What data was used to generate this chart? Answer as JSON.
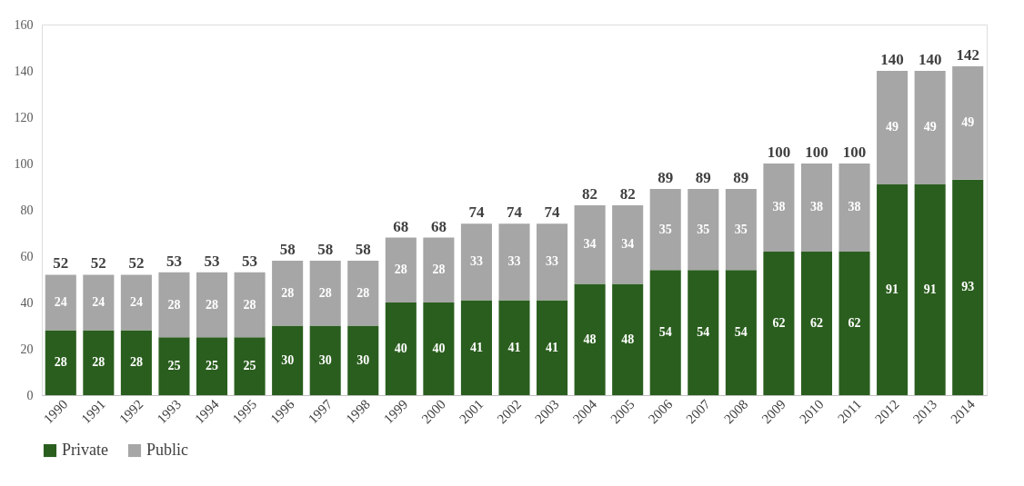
{
  "chart_data": {
    "type": "bar",
    "stacked": true,
    "categories": [
      "1990",
      "1991",
      "1992",
      "1993",
      "1994",
      "1995",
      "1996",
      "1997",
      "1998",
      "1999",
      "2000",
      "2001",
      "2002",
      "2003",
      "2004",
      "2005",
      "2006",
      "2007",
      "2008",
      "2009",
      "2010",
      "2011",
      "2012",
      "2013",
      "2014"
    ],
    "series": [
      {
        "name": "Private",
        "color": "#2a5e1e",
        "values": [
          28,
          28,
          28,
          25,
          25,
          25,
          30,
          30,
          30,
          40,
          40,
          41,
          41,
          41,
          48,
          48,
          54,
          54,
          54,
          62,
          62,
          62,
          91,
          91,
          93
        ]
      },
      {
        "name": "Public",
        "color": "#a6a6a6",
        "values": [
          24,
          24,
          24,
          28,
          28,
          28,
          28,
          28,
          28,
          28,
          28,
          33,
          33,
          33,
          34,
          34,
          35,
          35,
          35,
          38,
          38,
          38,
          49,
          49,
          49
        ]
      }
    ],
    "totals": [
      "52",
      "52",
      "52",
      "53",
      "53",
      "53",
      "58",
      "58",
      "58",
      "68",
      "68",
      "74",
      "74",
      "74",
      "82",
      "82",
      "89",
      "89",
      "89",
      "100",
      "100",
      "100",
      "140",
      "140",
      "142"
    ],
    "data_labels": true,
    "ylim": [
      0,
      160
    ],
    "yticks": [
      0,
      20,
      40,
      60,
      80,
      100,
      120,
      140,
      160
    ],
    "grid": false,
    "legend": "bottom"
  }
}
